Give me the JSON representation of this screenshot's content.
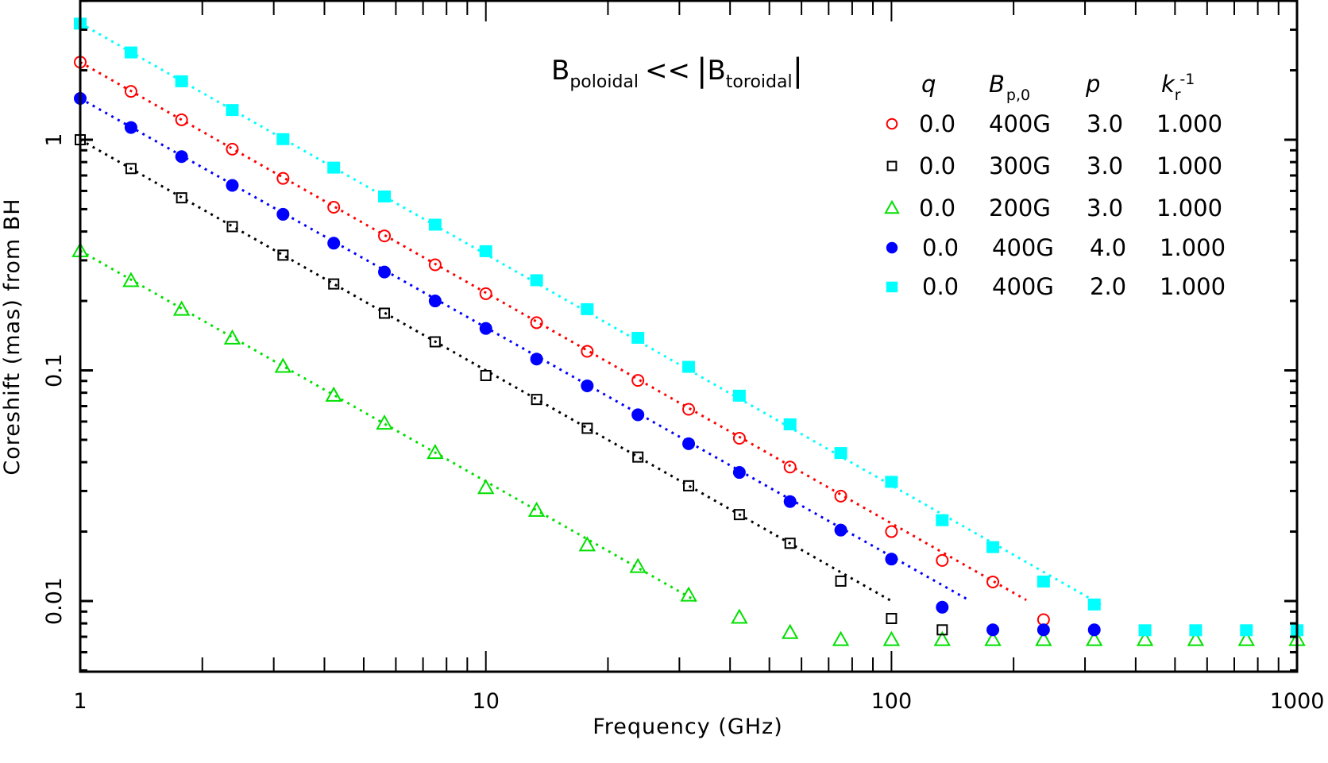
{
  "chart_data": {
    "type": "scatter",
    "title": "",
    "annotation": {
      "text_main_1": "B",
      "sub_1": "poloidal",
      "op": "<<",
      "text_main_2": "B",
      "sub_2": "toroidal",
      "full": "B_poloidal << |B_toroidal|"
    },
    "xlabel": "Frequency (GHz)",
    "ylabel": "Coreshift (mas) from BH",
    "xscale": "log",
    "yscale": "log",
    "xlim": [
      1,
      1000
    ],
    "ylim": [
      0.005,
      4
    ],
    "x_ticks": [
      {
        "value": 1,
        "label": "1"
      },
      {
        "value": 10,
        "label": "10"
      },
      {
        "value": 100,
        "label": "100"
      },
      {
        "value": 1000,
        "label": "1000"
      }
    ],
    "y_ticks": [
      {
        "value": 0.01,
        "label": "0.01"
      },
      {
        "value": 0.1,
        "label": "0.1"
      },
      {
        "value": 1,
        "label": "1"
      }
    ],
    "grid": false,
    "legend_position": "upper right",
    "legend": {
      "headers": {
        "q": "q",
        "b": "B",
        "b_sub": "p,0",
        "p": "p",
        "k": "k",
        "k_sub": "r",
        "k_sup": "-1"
      },
      "entries": [
        {
          "marker": "open-circle",
          "color": "#ff0000",
          "q": "0.0",
          "b": "400G",
          "p": "3.0",
          "k": "1.000"
        },
        {
          "marker": "open-square",
          "color": "#000000",
          "q": "0.0",
          "b": "300G",
          "p": "3.0",
          "k": "1.000"
        },
        {
          "marker": "open-triangle",
          "color": "#00e000",
          "q": "0.0",
          "b": "200G",
          "p": "3.0",
          "k": "1.000"
        },
        {
          "marker": "filled-circle",
          "color": "#0000ff",
          "q": "0.0",
          "b": "400G",
          "p": "4.0",
          "k": "1.000"
        },
        {
          "marker": "filled-square",
          "color": "#00ffff",
          "q": "0.0",
          "b": "400G",
          "p": "2.0",
          "k": "1.000"
        }
      ]
    },
    "x": [
      1,
      1.334,
      1.778,
      2.371,
      3.162,
      4.217,
      5.623,
      7.499,
      10,
      13.34,
      17.78,
      23.71,
      31.62,
      42.17,
      56.23,
      74.99,
      100,
      133.4,
      177.8,
      237.1,
      316.2,
      421.7,
      562.3,
      749.9,
      1000
    ],
    "series": [
      {
        "name": "q=0.0 Bp0=400G p=3.0 kr^-1=1.000",
        "marker": "open-circle",
        "color": "#ff0000",
        "values": [
          2.17,
          1.62,
          1.22,
          0.91,
          0.68,
          0.51,
          0.383,
          0.287,
          0.215,
          0.161,
          0.121,
          0.0905,
          0.0678,
          0.0508,
          0.0381,
          0.0285,
          0.02,
          0.015,
          0.0121,
          0.0083,
          null,
          null,
          null,
          null,
          null
        ],
        "fit_line": {
          "x_end": 215,
          "y_end": 0.0101
        }
      },
      {
        "name": "q=0.0 Bp0=300G p=3.0 kr^-1=1.000",
        "marker": "open-square",
        "color": "#000000",
        "values": [
          1.0,
          0.75,
          0.56,
          0.42,
          0.316,
          0.237,
          0.177,
          0.133,
          0.095,
          0.0748,
          0.0561,
          0.0421,
          0.0316,
          0.0237,
          0.0178,
          0.0122,
          0.0084,
          0.0075,
          null,
          null,
          null,
          null,
          null,
          null,
          null
        ],
        "fit_line": {
          "x_end": 100,
          "y_end": 0.01
        }
      },
      {
        "name": "q=0.0 Bp0=200G p=3.0 kr^-1=1.000",
        "marker": "open-triangle",
        "color": "#00e000",
        "values": [
          0.33,
          0.245,
          0.184,
          0.138,
          0.104,
          0.078,
          0.059,
          0.044,
          0.031,
          0.0247,
          0.0175,
          0.0141,
          0.0106,
          0.0085,
          0.0073,
          0.0068,
          0.0068,
          0.0068,
          0.0068,
          0.0068,
          0.0068,
          0.0068,
          0.0068,
          0.0068,
          0.0068
        ],
        "fit_line": {
          "x_end": 33,
          "y_end": 0.01
        }
      },
      {
        "name": "q=0.0 Bp0=400G p=4.0 kr^-1=1.000",
        "marker": "filled-circle",
        "color": "#0000ff",
        "values": [
          1.51,
          1.13,
          0.845,
          0.634,
          0.475,
          0.356,
          0.267,
          0.2,
          0.152,
          0.112,
          0.0857,
          0.0642,
          0.0481,
          0.0361,
          0.027,
          0.0203,
          0.0152,
          0.0094,
          0.0075,
          0.0075,
          0.0075,
          null,
          null,
          null,
          null
        ],
        "fit_line": {
          "x_end": 155,
          "y_end": 0.0101
        }
      },
      {
        "name": "q=0.0 Bp0=400G p=2.0 kr^-1=1.000",
        "marker": "filled-square",
        "color": "#00ffff",
        "values": [
          3.2,
          2.4,
          1.8,
          1.35,
          1.01,
          0.76,
          0.57,
          0.43,
          0.33,
          0.247,
          0.185,
          0.139,
          0.104,
          0.078,
          0.0586,
          0.044,
          0.033,
          0.0225,
          0.0172,
          0.0122,
          0.0097,
          0.0075,
          0.0075,
          0.0075,
          0.0075
        ],
        "fit_line": {
          "x_end": 330,
          "y_end": 0.0096
        }
      }
    ]
  }
}
